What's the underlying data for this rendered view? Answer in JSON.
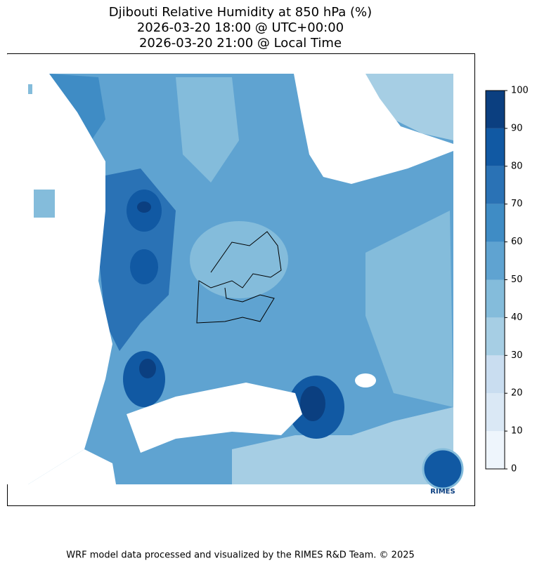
{
  "title": [
    "Djibouti Relative Humidity at 850 hPa (%)",
    "2026-03-20 18:00 @ UTC+00:00",
    "2026-03-20 21:00 @ Local Time"
  ],
  "colorbar": {
    "ticks": [
      0,
      10,
      20,
      30,
      40,
      50,
      60,
      70,
      80,
      90,
      100
    ],
    "colors": [
      "#eef5fc",
      "#dae8f5",
      "#c9ddf0",
      "#a6cee4",
      "#84bcdb",
      "#5fa3d1",
      "#3f8cc5",
      "#2a72b5",
      "#1159a3",
      "#0b3f80"
    ]
  },
  "logo": "RIMES",
  "footer": "WRF model data processed and visualized by the RIMES R&D Team. © 2025"
}
